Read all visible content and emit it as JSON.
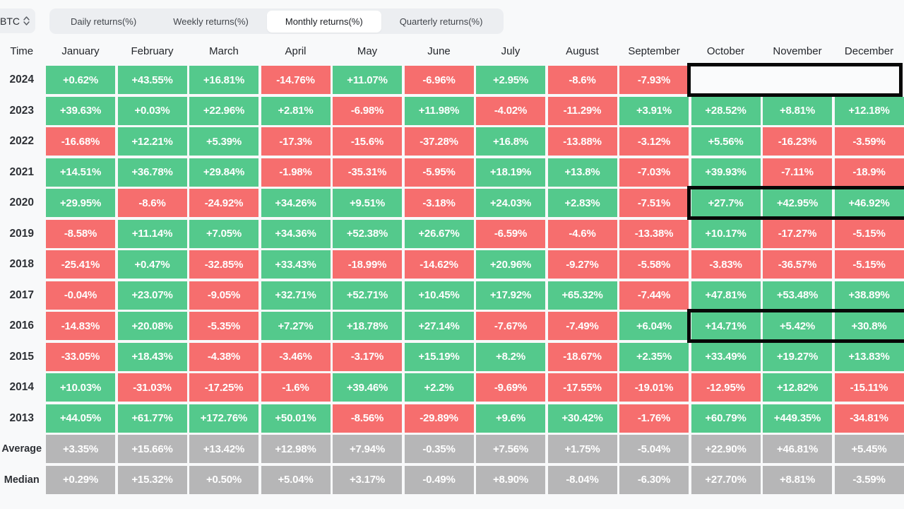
{
  "controls": {
    "symbol_select": {
      "value": "BTC"
    },
    "tabs": [
      {
        "label": "Daily returns(%)",
        "active": false
      },
      {
        "label": "Weekly returns(%)",
        "active": false
      },
      {
        "label": "Monthly returns(%)",
        "active": true
      },
      {
        "label": "Quarterly returns(%)",
        "active": false
      }
    ]
  },
  "colors": {
    "positive": "#54c98c",
    "negative": "#f66e6e",
    "neutral": "#b6b6b7",
    "highlight_border": "#070707"
  },
  "table": {
    "time_header": "Time",
    "months": [
      "January",
      "February",
      "March",
      "April",
      "May",
      "June",
      "July",
      "August",
      "September",
      "October",
      "November",
      "December"
    ],
    "rows": [
      {
        "label": "2024",
        "type": "year",
        "cells": [
          "+0.62%",
          "+43.55%",
          "+16.81%",
          "-14.76%",
          "+11.07%",
          "-6.96%",
          "+2.95%",
          "-8.6%",
          "-7.93%",
          "",
          "",
          ""
        ]
      },
      {
        "label": "2023",
        "type": "year",
        "cells": [
          "+39.63%",
          "+0.03%",
          "+22.96%",
          "+2.81%",
          "-6.98%",
          "+11.98%",
          "-4.02%",
          "-11.29%",
          "+3.91%",
          "+28.52%",
          "+8.81%",
          "+12.18%"
        ]
      },
      {
        "label": "2022",
        "type": "year",
        "cells": [
          "-16.68%",
          "+12.21%",
          "+5.39%",
          "-17.3%",
          "-15.6%",
          "-37.28%",
          "+16.8%",
          "-13.88%",
          "-3.12%",
          "+5.56%",
          "-16.23%",
          "-3.59%"
        ]
      },
      {
        "label": "2021",
        "type": "year",
        "cells": [
          "+14.51%",
          "+36.78%",
          "+29.84%",
          "-1.98%",
          "-35.31%",
          "-5.95%",
          "+18.19%",
          "+13.8%",
          "-7.03%",
          "+39.93%",
          "-7.11%",
          "-18.9%"
        ]
      },
      {
        "label": "2020",
        "type": "year",
        "cells": [
          "+29.95%",
          "-8.6%",
          "-24.92%",
          "+34.26%",
          "+9.51%",
          "-3.18%",
          "+24.03%",
          "+2.83%",
          "-7.51%",
          "+27.7%",
          "+42.95%",
          "+46.92%"
        ]
      },
      {
        "label": "2019",
        "type": "year",
        "cells": [
          "-8.58%",
          "+11.14%",
          "+7.05%",
          "+34.36%",
          "+52.38%",
          "+26.67%",
          "-6.59%",
          "-4.6%",
          "-13.38%",
          "+10.17%",
          "-17.27%",
          "-5.15%"
        ]
      },
      {
        "label": "2018",
        "type": "year",
        "cells": [
          "-25.41%",
          "+0.47%",
          "-32.85%",
          "+33.43%",
          "-18.99%",
          "-14.62%",
          "+20.96%",
          "-9.27%",
          "-5.58%",
          "-3.83%",
          "-36.57%",
          "-5.15%"
        ]
      },
      {
        "label": "2017",
        "type": "year",
        "cells": [
          "-0.04%",
          "+23.07%",
          "-9.05%",
          "+32.71%",
          "+52.71%",
          "+10.45%",
          "+17.92%",
          "+65.32%",
          "-7.44%",
          "+47.81%",
          "+53.48%",
          "+38.89%"
        ]
      },
      {
        "label": "2016",
        "type": "year",
        "cells": [
          "-14.83%",
          "+20.08%",
          "-5.35%",
          "+7.27%",
          "+18.78%",
          "+27.14%",
          "-7.67%",
          "-7.49%",
          "+6.04%",
          "+14.71%",
          "+5.42%",
          "+30.8%"
        ]
      },
      {
        "label": "2015",
        "type": "year",
        "cells": [
          "-33.05%",
          "+18.43%",
          "-4.38%",
          "-3.46%",
          "-3.17%",
          "+15.19%",
          "+8.2%",
          "-18.67%",
          "+2.35%",
          "+33.49%",
          "+19.27%",
          "+13.83%"
        ]
      },
      {
        "label": "2014",
        "type": "year",
        "cells": [
          "+10.03%",
          "-31.03%",
          "-17.25%",
          "-1.6%",
          "+39.46%",
          "+2.2%",
          "-9.69%",
          "-17.55%",
          "-19.01%",
          "-12.95%",
          "+12.82%",
          "-15.11%"
        ]
      },
      {
        "label": "2013",
        "type": "year",
        "cells": [
          "+44.05%",
          "+61.77%",
          "+172.76%",
          "+50.01%",
          "-8.56%",
          "-29.89%",
          "+9.6%",
          "+30.42%",
          "-1.76%",
          "+60.79%",
          "+449.35%",
          "-34.81%"
        ]
      },
      {
        "label": "Average",
        "type": "stat",
        "cells": [
          "+3.35%",
          "+15.66%",
          "+13.42%",
          "+12.98%",
          "+7.94%",
          "-0.35%",
          "+7.56%",
          "+1.75%",
          "-5.04%",
          "+22.90%",
          "+46.81%",
          "+5.45%"
        ]
      },
      {
        "label": "Median",
        "type": "stat",
        "cells": [
          "+0.29%",
          "+15.32%",
          "+0.50%",
          "+5.04%",
          "+3.17%",
          "-0.49%",
          "+8.90%",
          "-8.04%",
          "-6.30%",
          "+27.70%",
          "+8.81%",
          "-3.59%"
        ]
      }
    ],
    "highlights": [
      {
        "row": "2024",
        "from": "October",
        "to": "December",
        "filled": true,
        "clipped_right": false
      },
      {
        "row": "2020",
        "from": "October",
        "to": "December",
        "filled": false,
        "clipped_right": true
      },
      {
        "row": "2016",
        "from": "October",
        "to": "December",
        "filled": false,
        "clipped_right": true
      }
    ]
  }
}
